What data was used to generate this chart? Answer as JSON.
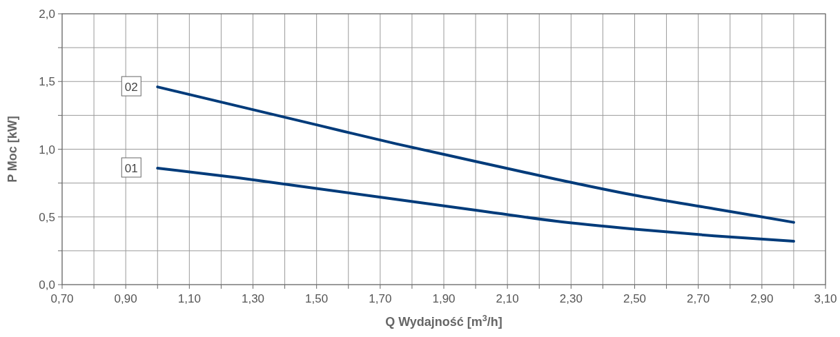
{
  "chart_data": {
    "type": "line",
    "xlabel": "Q Wydajność [m$^{3}$/h]",
    "ylabel": "P Moc [kW]",
    "xlim": [
      0.7,
      3.1
    ],
    "xticks": [
      {
        "value": 0.7,
        "label": "0,70"
      },
      {
        "value": 0.8,
        "label": null
      },
      {
        "value": 0.9,
        "label": "0,90"
      },
      {
        "value": 1.0,
        "label": null
      },
      {
        "value": 1.1,
        "label": "1,10"
      },
      {
        "value": 1.2,
        "label": null
      },
      {
        "value": 1.3,
        "label": "1,30"
      },
      {
        "value": 1.4,
        "label": null
      },
      {
        "value": 1.5,
        "label": "1,50"
      },
      {
        "value": 1.6,
        "label": null
      },
      {
        "value": 1.7,
        "label": "1,70"
      },
      {
        "value": 1.8,
        "label": null
      },
      {
        "value": 1.9,
        "label": "1,90"
      },
      {
        "value": 2.0,
        "label": null
      },
      {
        "value": 2.1,
        "label": "2,10"
      },
      {
        "value": 2.2,
        "label": null
      },
      {
        "value": 2.3,
        "label": "2,30"
      },
      {
        "value": 2.4,
        "label": null
      },
      {
        "value": 2.5,
        "label": "2,50"
      },
      {
        "value": 2.6,
        "label": null
      },
      {
        "value": 2.7,
        "label": "2,70"
      },
      {
        "value": 2.8,
        "label": null
      },
      {
        "value": 2.9,
        "label": "2,90"
      },
      {
        "value": 3.0,
        "label": null
      },
      {
        "value": 3.1,
        "label": "3,10"
      }
    ],
    "ylim": [
      0,
      2
    ],
    "yticks": [
      {
        "value": 0,
        "label": "0,0"
      },
      {
        "value": 0.25,
        "label": null
      },
      {
        "value": 0.5,
        "label": "0,5"
      },
      {
        "value": 0.75,
        "label": null
      },
      {
        "value": 1,
        "label": "1,0"
      },
      {
        "value": 1.25,
        "label": null
      },
      {
        "value": 1.5,
        "label": "1,5"
      },
      {
        "value": 1.75,
        "label": null
      },
      {
        "value": 2,
        "label": "2,0"
      }
    ],
    "grid": true,
    "line_style": "solid",
    "x": [
      1.0,
      1.25,
      1.5,
      1.75,
      2.0,
      2.25,
      2.5,
      2.75,
      3.0
    ],
    "series": [
      {
        "name": "01",
        "color": "#003b7a",
        "values": [
          0.86,
          0.79,
          0.71,
          0.63,
          0.55,
          0.47,
          0.41,
          0.36,
          0.32
        ]
      },
      {
        "name": "02",
        "color": "#003b7a",
        "values": [
          1.46,
          1.32,
          1.18,
          1.04,
          0.91,
          0.78,
          0.66,
          0.56,
          0.46
        ]
      }
    ]
  }
}
